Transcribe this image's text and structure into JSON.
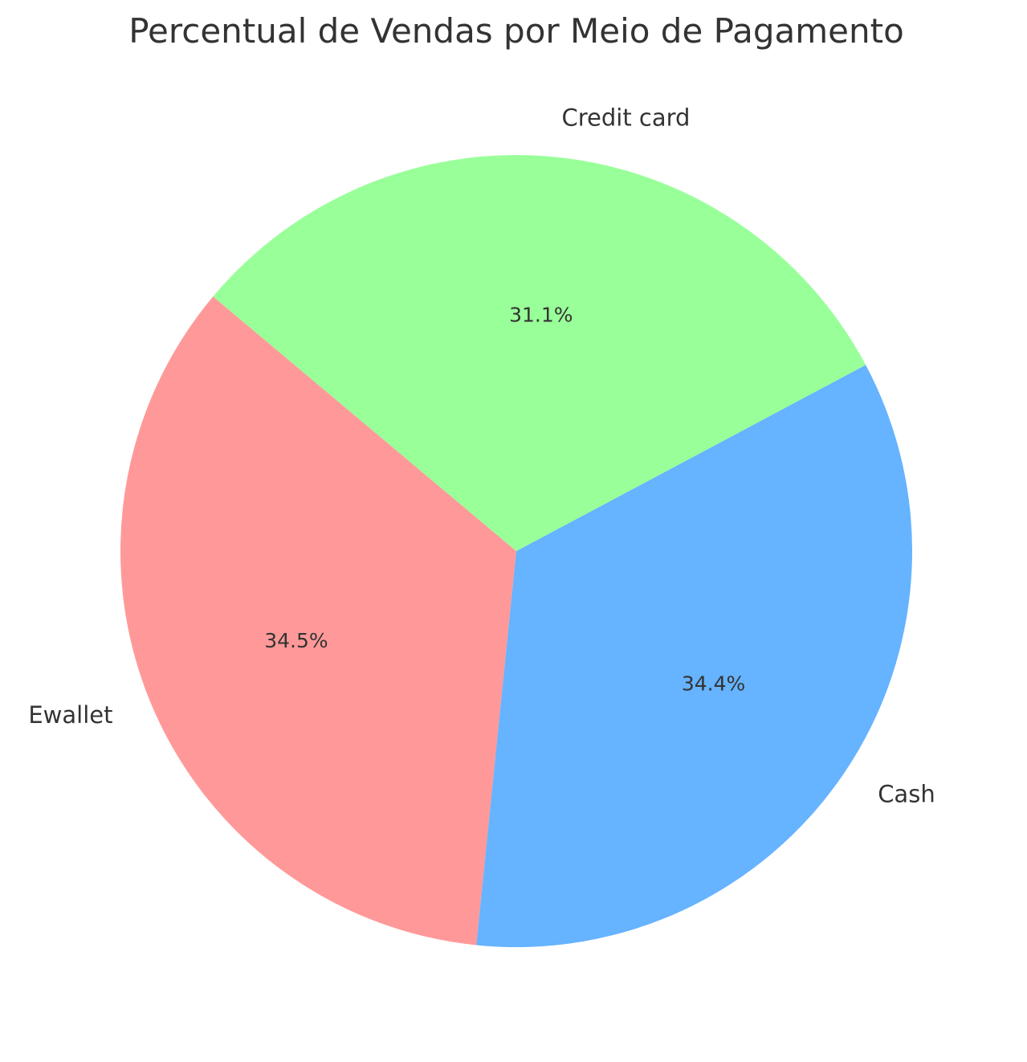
{
  "chart_data": {
    "type": "pie",
    "title": "Percentual de Vendas por Meio de Pagamento",
    "start_angle_deg": 140,
    "direction": "counterclockwise",
    "slices": [
      {
        "name": "Ewallet",
        "value": 34.5,
        "label": "34.5%",
        "color": "#ff9999"
      },
      {
        "name": "Cash",
        "value": 34.4,
        "label": "34.4%",
        "color": "#66b3ff"
      },
      {
        "name": "Credit card",
        "value": 31.1,
        "label": "31.1%",
        "color": "#99ff99"
      }
    ]
  }
}
